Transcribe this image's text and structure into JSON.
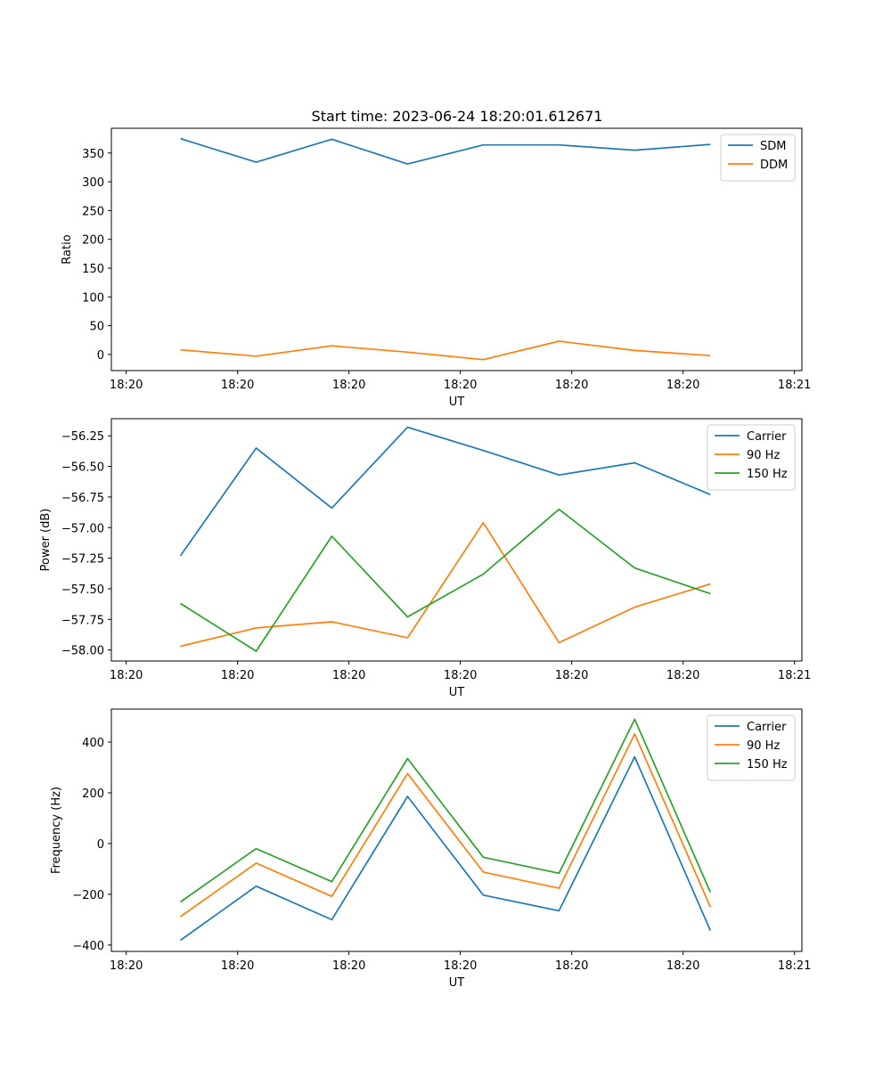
{
  "figure": {
    "title": "Start time: 2023-06-24 18:20:01.612671"
  },
  "chart_data": [
    {
      "type": "line",
      "title": "Start time: 2023-06-24 18:20:01.612671",
      "xlabel": "UT",
      "ylabel": "Ratio",
      "x_tick_labels": [
        "18:20",
        "18:20",
        "18:20",
        "18:20",
        "18:20",
        "18:20",
        "18:21"
      ],
      "y_ticks": [
        0,
        50,
        100,
        150,
        200,
        250,
        300,
        350
      ],
      "ylim": [
        -28,
        393
      ],
      "legend_position": "upper right",
      "grid": false,
      "series": [
        {
          "name": "SDM",
          "color": "#1f77b4",
          "values": [
            375,
            334,
            374,
            331,
            364,
            364,
            355,
            365
          ]
        },
        {
          "name": "DDM",
          "color": "#ff7f0e",
          "values": [
            8,
            -3,
            15,
            4,
            -9,
            23,
            7,
            -2
          ]
        }
      ]
    },
    {
      "type": "line",
      "title": "",
      "xlabel": "UT",
      "ylabel": "Power (dB)",
      "x_tick_labels": [
        "18:20",
        "18:20",
        "18:20",
        "18:20",
        "18:20",
        "18:20",
        "18:21"
      ],
      "y_ticks": [
        -58.0,
        -57.75,
        -57.5,
        -57.25,
        -57.0,
        -56.75,
        -56.5,
        -56.25
      ],
      "y_tick_labels": [
        "−58.00",
        "−57.75",
        "−57.50",
        "−57.25",
        "−57.00",
        "−56.75",
        "−56.50",
        "−56.25"
      ],
      "ylim": [
        -58.09,
        -56.11
      ],
      "legend_position": "upper right",
      "grid": false,
      "series": [
        {
          "name": "Carrier",
          "color": "#1f77b4",
          "values": [
            -57.23,
            -56.35,
            -56.84,
            -56.18,
            -56.37,
            -56.57,
            -56.47,
            -56.73
          ]
        },
        {
          "name": "90 Hz",
          "color": "#ff7f0e",
          "values": [
            -57.97,
            -57.82,
            -57.77,
            -57.9,
            -56.96,
            -57.94,
            -57.65,
            -57.46
          ]
        },
        {
          "name": "150 Hz",
          "color": "#2ca02c",
          "values": [
            -57.62,
            -58.01,
            -57.07,
            -57.73,
            -57.38,
            -56.85,
            -57.33,
            -57.54
          ]
        }
      ]
    },
    {
      "type": "line",
      "title": "",
      "xlabel": "UT",
      "ylabel": "Frequency (Hz)",
      "x_tick_labels": [
        "18:20",
        "18:20",
        "18:20",
        "18:20",
        "18:20",
        "18:20",
        "18:21"
      ],
      "y_ticks": [
        -400,
        -200,
        0,
        200,
        400
      ],
      "y_tick_labels": [
        "−400",
        "−200",
        "0",
        "200",
        "400"
      ],
      "ylim": [
        -425,
        530
      ],
      "legend_position": "upper right",
      "grid": false,
      "series": [
        {
          "name": "Carrier",
          "color": "#1f77b4",
          "values": [
            -381,
            -168,
            -300,
            186,
            -203,
            -265,
            342,
            -343
          ]
        },
        {
          "name": "90 Hz",
          "color": "#ff7f0e",
          "values": [
            -288,
            -77,
            -208,
            276,
            -112,
            -176,
            432,
            -250
          ]
        },
        {
          "name": "150 Hz",
          "color": "#2ca02c",
          "values": [
            -230,
            -20,
            -150,
            335,
            -54,
            -117,
            490,
            -192
          ]
        }
      ]
    }
  ]
}
